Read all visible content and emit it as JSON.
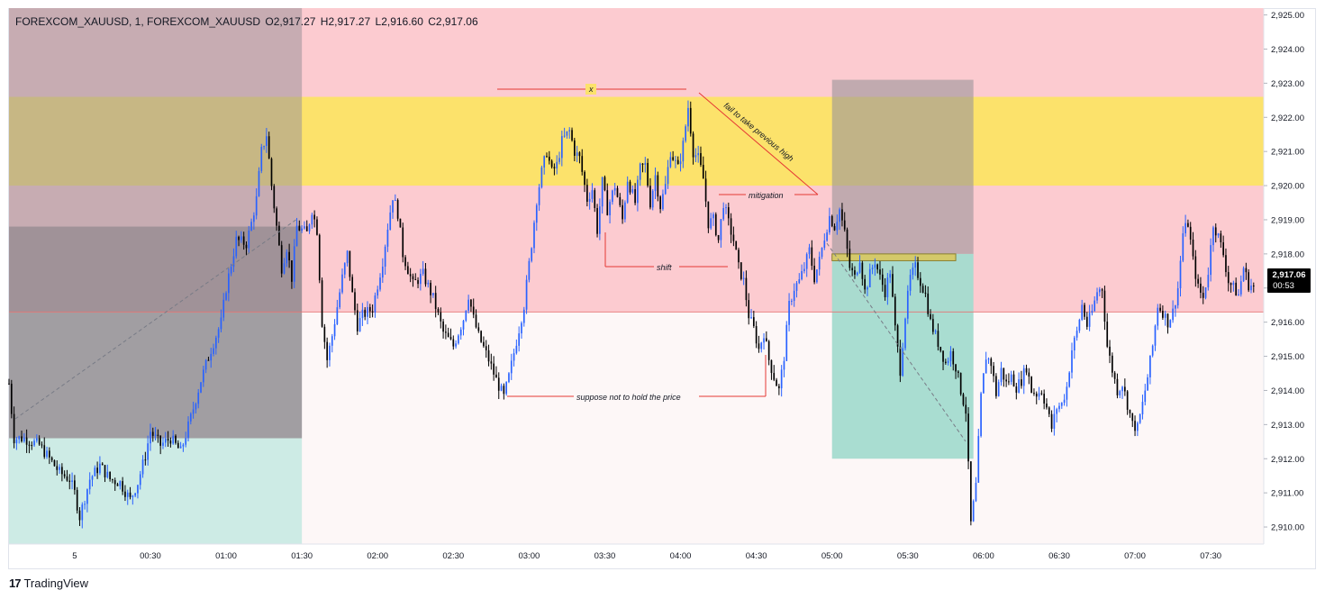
{
  "header": {
    "symbol": "FOREXCOM_XAUUSD, 1, FOREXCOM_XAUUSD",
    "open": "O2,917.27",
    "high": "H2,917.27",
    "low": "L2,916.60",
    "close": "C2,917.06"
  },
  "price_tag": {
    "price": "2,917.06",
    "timer": "00:53"
  },
  "brand": {
    "logo": "17",
    "name": "TradingView"
  },
  "colors": {
    "bull": "#2962ff",
    "bear": "#000000",
    "pink_zone": "#fccbd0",
    "yellow_zone": "#fce26b",
    "grey_zone": "#9a9499",
    "teal_zone": "#a4dbcf",
    "annotation_line": "#e53935"
  },
  "annotations": {
    "x": "x",
    "fail": "fail to take previous high",
    "mitigation": "mitigation",
    "shift": "shift",
    "suppose": "suppose not to hold the price"
  },
  "chart_data": {
    "type": "candlestick",
    "ylim": [
      2909.5,
      2925.2
    ],
    "y_ticks": [
      "2,910.00",
      "2,911.00",
      "2,912.00",
      "2,913.00",
      "2,914.00",
      "2,915.00",
      "2,916.00",
      "2,917.00",
      "2,918.00",
      "2,919.00",
      "2,920.00",
      "2,921.00",
      "2,922.00",
      "2,923.00",
      "2,924.00",
      "2,925.00"
    ],
    "y_tick_values": [
      2910,
      2911,
      2912,
      2913,
      2914,
      2915,
      2916,
      2917,
      2918,
      2919,
      2920,
      2921,
      2922,
      2923,
      2924,
      2925
    ],
    "x_ticks": [
      "5",
      "00:30",
      "01:00",
      "01:30",
      "02:00",
      "02:30",
      "03:00",
      "03:30",
      "04:00",
      "04:30",
      "05:00",
      "05:30",
      "06:00",
      "06:30",
      "07:00",
      "07:30"
    ],
    "x_tick_minutes": [
      0,
      30,
      60,
      90,
      120,
      150,
      180,
      210,
      240,
      270,
      300,
      330,
      360,
      390,
      420,
      450
    ],
    "time_range_minutes": [
      -26,
      471
    ],
    "last_price": 2917.06,
    "price_path": [
      [
        -26,
        2914.2
      ],
      [
        -24,
        2912.6
      ],
      [
        -20,
        2912.6
      ],
      [
        -14,
        2912.4
      ],
      [
        -10,
        2912.0
      ],
      [
        -6,
        2911.6
      ],
      [
        -2,
        2911.4
      ],
      [
        0,
        2911.0
      ],
      [
        2,
        2910.3
      ],
      [
        6,
        2911.4
      ],
      [
        10,
        2911.8
      ],
      [
        14,
        2911.4
      ],
      [
        18,
        2911.3
      ],
      [
        22,
        2910.8
      ],
      [
        25,
        2911.3
      ],
      [
        28,
        2912.1
      ],
      [
        30,
        2912.8
      ],
      [
        34,
        2912.4
      ],
      [
        38,
        2912.6
      ],
      [
        42,
        2912.2
      ],
      [
        46,
        2913.2
      ],
      [
        50,
        2914.3
      ],
      [
        54,
        2915.2
      ],
      [
        58,
        2916.0
      ],
      [
        60,
        2917.0
      ],
      [
        64,
        2918.4
      ],
      [
        68,
        2918.3
      ],
      [
        70,
        2918.9
      ],
      [
        72,
        2919.6
      ],
      [
        74,
        2921.0
      ],
      [
        76,
        2921.5
      ],
      [
        78,
        2920.0
      ],
      [
        80,
        2918.8
      ],
      [
        82,
        2917.6
      ],
      [
        84,
        2918.2
      ],
      [
        86,
        2917.3
      ],
      [
        88,
        2918.8
      ],
      [
        92,
        2918.6
      ],
      [
        94,
        2919.3
      ],
      [
        96,
        2918.7
      ],
      [
        98,
        2916.0
      ],
      [
        100,
        2914.9
      ],
      [
        102,
        2915.6
      ],
      [
        106,
        2917.3
      ],
      [
        108,
        2918.0
      ],
      [
        110,
        2916.8
      ],
      [
        112,
        2915.9
      ],
      [
        114,
        2916.2
      ],
      [
        118,
        2916.4
      ],
      [
        122,
        2917.8
      ],
      [
        124,
        2918.8
      ],
      [
        126,
        2919.7
      ],
      [
        128,
        2919.2
      ],
      [
        130,
        2918.0
      ],
      [
        134,
        2917.1
      ],
      [
        138,
        2917.4
      ],
      [
        142,
        2916.7
      ],
      [
        146,
        2915.7
      ],
      [
        150,
        2915.3
      ],
      [
        154,
        2916.1
      ],
      [
        156,
        2916.8
      ],
      [
        158,
        2916.1
      ],
      [
        160,
        2915.6
      ],
      [
        164,
        2914.9
      ],
      [
        167,
        2914.3
      ],
      [
        170,
        2913.8
      ],
      [
        172,
        2914.4
      ],
      [
        174,
        2915.1
      ],
      [
        178,
        2916.5
      ],
      [
        181,
        2918.3
      ],
      [
        183,
        2919.6
      ],
      [
        185,
        2920.4
      ],
      [
        187,
        2921.0
      ],
      [
        189,
        2920.4
      ],
      [
        191,
        2920.6
      ],
      [
        193,
        2921.3
      ],
      [
        196,
        2921.6
      ],
      [
        198,
        2921.0
      ],
      [
        200,
        2920.8
      ],
      [
        203,
        2919.6
      ],
      [
        205,
        2919.9
      ],
      [
        207,
        2918.7
      ],
      [
        209,
        2920.1
      ],
      [
        211,
        2919.3
      ],
      [
        214,
        2920.0
      ],
      [
        217,
        2919.0
      ],
      [
        219,
        2920.2
      ],
      [
        222,
        2919.5
      ],
      [
        224,
        2920.5
      ],
      [
        226,
        2920.6
      ],
      [
        228,
        2919.5
      ],
      [
        230,
        2920.3
      ],
      [
        232,
        2919.4
      ],
      [
        234,
        2920.0
      ],
      [
        236,
        2921.0
      ],
      [
        239,
        2920.5
      ],
      [
        241,
        2921.2
      ],
      [
        243,
        2922.3
      ],
      [
        245,
        2921.0
      ],
      [
        247,
        2920.8
      ],
      [
        249,
        2920.2
      ],
      [
        251,
        2918.9
      ],
      [
        253,
        2919.0
      ],
      [
        255,
        2918.4
      ],
      [
        257,
        2919.5
      ],
      [
        259,
        2918.9
      ],
      [
        261,
        2918.4
      ],
      [
        263,
        2917.6
      ],
      [
        265,
        2917.2
      ],
      [
        267,
        2916.2
      ],
      [
        269,
        2915.8
      ],
      [
        271,
        2915.2
      ],
      [
        273,
        2915.7
      ],
      [
        275,
        2914.9
      ],
      [
        277,
        2914.4
      ],
      [
        279,
        2914.0
      ],
      [
        281,
        2915.0
      ],
      [
        283,
        2916.5
      ],
      [
        285,
        2917.0
      ],
      [
        287,
        2917.2
      ],
      [
        289,
        2917.6
      ],
      [
        291,
        2918.1
      ],
      [
        293,
        2917.3
      ],
      [
        295,
        2917.8
      ],
      [
        297,
        2918.5
      ],
      [
        299,
        2919.1
      ],
      [
        301,
        2918.8
      ],
      [
        303,
        2919.3
      ],
      [
        305,
        2918.6
      ],
      [
        307,
        2917.6
      ],
      [
        309,
        2917.3
      ],
      [
        311,
        2917.9
      ],
      [
        313,
        2916.9
      ],
      [
        315,
        2917.4
      ],
      [
        317,
        2917.8
      ],
      [
        319,
        2917.3
      ],
      [
        321,
        2916.9
      ],
      [
        323,
        2917.5
      ],
      [
        325,
        2915.8
      ],
      [
        327,
        2914.6
      ],
      [
        329,
        2916.2
      ],
      [
        331,
        2917.3
      ],
      [
        333,
        2917.6
      ],
      [
        335,
        2917.2
      ],
      [
        337,
        2916.8
      ],
      [
        339,
        2916.0
      ],
      [
        341,
        2915.6
      ],
      [
        343,
        2915.2
      ],
      [
        345,
        2914.8
      ],
      [
        347,
        2915.1
      ],
      [
        349,
        2914.7
      ],
      [
        351,
        2914.0
      ],
      [
        353,
        2913.4
      ],
      [
        355,
        2910.1
      ],
      [
        357,
        2911.2
      ],
      [
        359,
        2913.8
      ],
      [
        361,
        2915.0
      ],
      [
        363,
        2914.8
      ],
      [
        365,
        2913.9
      ],
      [
        367,
        2914.6
      ],
      [
        369,
        2914.2
      ],
      [
        371,
        2914.4
      ],
      [
        373,
        2914.1
      ],
      [
        375,
        2914.3
      ],
      [
        377,
        2914.7
      ],
      [
        379,
        2914.0
      ],
      [
        381,
        2913.9
      ],
      [
        383,
        2914.0
      ],
      [
        385,
        2913.5
      ],
      [
        387,
        2912.9
      ],
      [
        389,
        2913.5
      ],
      [
        391,
        2913.6
      ],
      [
        393,
        2914.1
      ],
      [
        395,
        2915.2
      ],
      [
        397,
        2915.7
      ],
      [
        399,
        2916.5
      ],
      [
        401,
        2915.9
      ],
      [
        403,
        2916.3
      ],
      [
        405,
        2916.9
      ],
      [
        407,
        2917.0
      ],
      [
        409,
        2915.3
      ],
      [
        411,
        2914.6
      ],
      [
        413,
        2914.0
      ],
      [
        415,
        2914.2
      ],
      [
        417,
        2913.6
      ],
      [
        419,
        2913.0
      ],
      [
        421,
        2912.9
      ],
      [
        423,
        2913.6
      ],
      [
        425,
        2914.4
      ],
      [
        427,
        2915.3
      ],
      [
        429,
        2916.5
      ],
      [
        431,
        2916.3
      ],
      [
        433,
        2916.0
      ],
      [
        435,
        2916.3
      ],
      [
        437,
        2917.0
      ],
      [
        439,
        2918.6
      ],
      [
        441,
        2918.9
      ],
      [
        443,
        2917.8
      ],
      [
        445,
        2917.0
      ],
      [
        447,
        2916.7
      ],
      [
        449,
        2917.5
      ],
      [
        451,
        2918.9
      ],
      [
        453,
        2918.5
      ],
      [
        455,
        2918.0
      ],
      [
        457,
        2917.2
      ],
      [
        459,
        2917.0
      ],
      [
        461,
        2916.8
      ],
      [
        463,
        2917.6
      ],
      [
        465,
        2917.1
      ],
      [
        467,
        2917.06
      ]
    ],
    "zones": {
      "pink_upper": {
        "price_top": 2925.2,
        "price_bottom": 2916.3,
        "t_from": -26,
        "t_to": 471
      },
      "yellow": {
        "price_top": 2922.6,
        "price_bottom": 2920.0,
        "t_from": -26,
        "t_to": 471
      },
      "light_pink_lower": {
        "price_top": 2916.3,
        "price_bottom": 2909.5,
        "t_from": 90,
        "t_to": 471
      },
      "grey_left": {
        "price_top": 2925.2,
        "price_bottom": 2912.6,
        "t_from": -26,
        "t_to": 90
      },
      "grey_left_dark": {
        "price_top": 2918.8,
        "price_bottom": 2912.6,
        "t_from": -26,
        "t_to": 90
      },
      "teal_left": {
        "price_top": 2912.6,
        "price_bottom": 2909.5,
        "t_from": -26,
        "t_to": 90
      },
      "grey_right": {
        "price_top": 2923.1,
        "price_bottom": 2918.0,
        "t_from": 300,
        "t_to": 356
      },
      "teal_right": {
        "price_top": 2918.0,
        "price_bottom": 2912.0,
        "t_from": 300,
        "t_to": 356
      },
      "yellow_small": {
        "price_top": 2918.0,
        "price_bottom": 2917.8,
        "t_from": 300,
        "t_to": 349
      }
    }
  }
}
